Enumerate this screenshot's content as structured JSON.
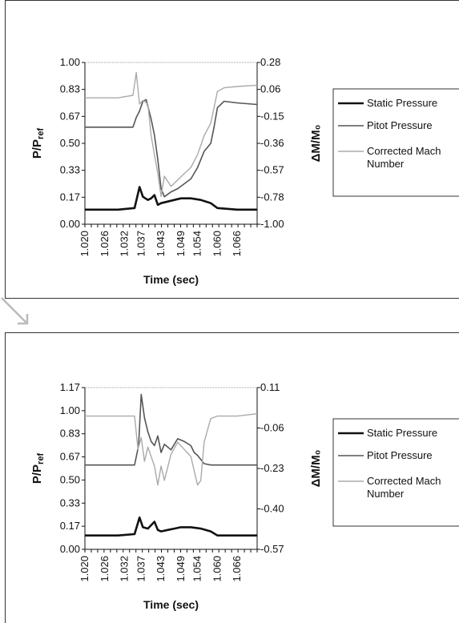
{
  "chart_data": [
    {
      "type": "line",
      "title": "",
      "xlabel": "Time (sec)",
      "ylabel_main": "P/P",
      "ylabel_sub": "ref",
      "y2label": "ΔM/M₀",
      "x_ticks": [
        "1.020",
        "1.026",
        "1.032",
        "1.037",
        "1.043",
        "1.049",
        "1.054",
        "1.060",
        "1.066"
      ],
      "x_range": [
        1.02,
        1.072
      ],
      "y_ticks": [
        "0.00",
        "0.17",
        "0.33",
        "0.50",
        "0.67",
        "0.83",
        "1.00"
      ],
      "y_range": [
        0.0,
        1.0
      ],
      "y2_ticks": [
        "-1.00",
        "-0.78",
        "-0.57",
        "-0.36",
        "-0.15",
        "0.06",
        "0.28"
      ],
      "y2_range": [
        -1.0,
        0.28
      ],
      "legend_position": "right",
      "series": [
        {
          "name": "Static Pressure",
          "axis": "left",
          "color": "#111111",
          "width": 2.6,
          "x": [
            1.02,
            1.03,
            1.035,
            1.0365,
            1.0375,
            1.039,
            1.04,
            1.041,
            1.042,
            1.043,
            1.045,
            1.047,
            1.049,
            1.052,
            1.055,
            1.058,
            1.06,
            1.066,
            1.072
          ],
          "y": [
            0.09,
            0.09,
            0.1,
            0.23,
            0.17,
            0.15,
            0.16,
            0.18,
            0.12,
            0.13,
            0.14,
            0.15,
            0.16,
            0.16,
            0.15,
            0.13,
            0.1,
            0.09,
            0.09
          ]
        },
        {
          "name": "Pitot Pressure",
          "axis": "left",
          "color": "#555555",
          "width": 1.6,
          "x": [
            1.02,
            1.03,
            1.0345,
            1.0355,
            1.0365,
            1.0375,
            1.0385,
            1.04,
            1.041,
            1.042,
            1.043,
            1.044,
            1.046,
            1.048,
            1.05,
            1.052,
            1.054,
            1.056,
            1.058,
            1.059,
            1.06,
            1.062,
            1.066,
            1.072
          ],
          "y": [
            0.6,
            0.6,
            0.6,
            0.66,
            0.7,
            0.76,
            0.77,
            0.65,
            0.55,
            0.4,
            0.22,
            0.17,
            0.2,
            0.22,
            0.25,
            0.28,
            0.35,
            0.45,
            0.5,
            0.6,
            0.72,
            0.76,
            0.75,
            0.74
          ]
        },
        {
          "name": "Corrected Mach Number",
          "axis": "right",
          "color": "#aaaaaa",
          "width": 1.4,
          "x": [
            1.02,
            1.03,
            1.0345,
            1.0355,
            1.0365,
            1.0375,
            1.039,
            1.04,
            1.041,
            1.042,
            1.043,
            1.044,
            1.046,
            1.048,
            1.05,
            1.052,
            1.054,
            1.056,
            1.058,
            1.06,
            1.062,
            1.066,
            1.072
          ],
          "y": [
            0.0,
            0.0,
            0.02,
            0.2,
            -0.05,
            -0.02,
            -0.05,
            -0.3,
            -0.45,
            -0.6,
            -0.78,
            -0.62,
            -0.7,
            -0.65,
            -0.6,
            -0.55,
            -0.45,
            -0.3,
            -0.2,
            0.05,
            0.08,
            0.09,
            0.1
          ]
        }
      ]
    },
    {
      "type": "line",
      "title": "",
      "xlabel": "Time (sec)",
      "ylabel_main": "P/P",
      "ylabel_sub": "ref",
      "y2label": "ΔM/M₀",
      "x_ticks": [
        "1.020",
        "1.026",
        "1.032",
        "1.037",
        "1.043",
        "1.049",
        "1.054",
        "1.060",
        "1.066"
      ],
      "x_range": [
        1.02,
        1.072
      ],
      "y_ticks": [
        "0.00",
        "0.17",
        "0.33",
        "0.50",
        "0.67",
        "0.83",
        "1.00",
        "1.17"
      ],
      "y_range": [
        0.0,
        1.17
      ],
      "y2_ticks": [
        "-0.57",
        "-0.40",
        "-0.23",
        "-0.06",
        "0.11"
      ],
      "y2_range": [
        -0.57,
        0.11
      ],
      "legend_position": "right",
      "series": [
        {
          "name": "Static Pressure",
          "axis": "left",
          "color": "#111111",
          "width": 2.6,
          "x": [
            1.02,
            1.03,
            1.035,
            1.0365,
            1.0375,
            1.039,
            1.041,
            1.042,
            1.043,
            1.045,
            1.047,
            1.049,
            1.052,
            1.055,
            1.058,
            1.06,
            1.066,
            1.072
          ],
          "y": [
            0.1,
            0.1,
            0.11,
            0.23,
            0.16,
            0.15,
            0.2,
            0.14,
            0.13,
            0.14,
            0.15,
            0.16,
            0.16,
            0.15,
            0.13,
            0.1,
            0.1,
            0.1
          ]
        },
        {
          "name": "Pitot Pressure",
          "axis": "left",
          "color": "#555555",
          "width": 1.6,
          "x": [
            1.02,
            1.035,
            1.0362,
            1.037,
            1.038,
            1.039,
            1.04,
            1.041,
            1.042,
            1.043,
            1.044,
            1.046,
            1.048,
            1.05,
            1.052,
            1.053,
            1.054,
            1.056,
            1.058,
            1.06,
            1.066,
            1.072
          ],
          "y": [
            0.61,
            0.61,
            0.75,
            1.12,
            0.95,
            0.85,
            0.78,
            0.75,
            0.82,
            0.7,
            0.76,
            0.72,
            0.8,
            0.78,
            0.75,
            0.7,
            0.68,
            0.62,
            0.61,
            0.61,
            0.61,
            0.61
          ]
        },
        {
          "name": "Corrected Mach Number",
          "axis": "right",
          "color": "#aaaaaa",
          "width": 1.4,
          "x": [
            1.02,
            1.03,
            1.035,
            1.036,
            1.037,
            1.038,
            1.039,
            1.04,
            1.041,
            1.042,
            1.043,
            1.044,
            1.046,
            1.048,
            1.05,
            1.052,
            1.054,
            1.055,
            1.056,
            1.058,
            1.06,
            1.066,
            1.072
          ],
          "y": [
            -0.01,
            -0.01,
            -0.01,
            -0.15,
            -0.1,
            -0.2,
            -0.14,
            -0.18,
            -0.22,
            -0.3,
            -0.22,
            -0.28,
            -0.17,
            -0.12,
            -0.15,
            -0.18,
            -0.3,
            -0.28,
            -0.12,
            -0.02,
            -0.01,
            -0.01,
            0.0
          ]
        }
      ]
    }
  ]
}
